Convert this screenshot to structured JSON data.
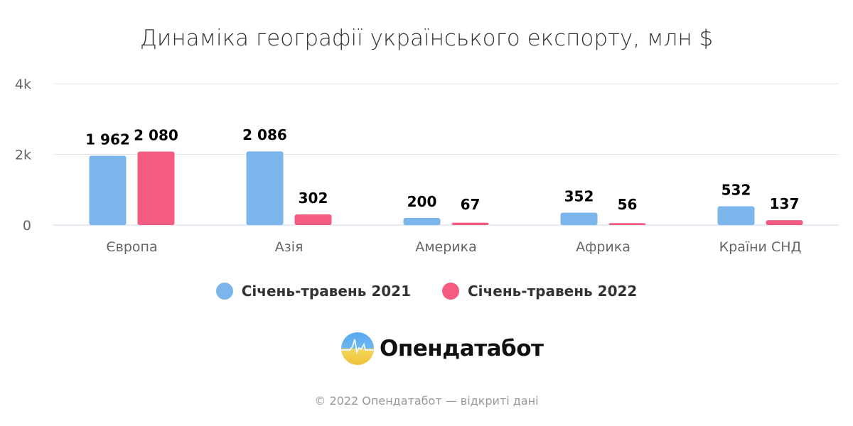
{
  "chart_data": {
    "type": "bar",
    "title": "Динаміка географії українського експорту, млн $",
    "categories": [
      "Європа",
      "Азія",
      "Америка",
      "Африка",
      "Країни СНД"
    ],
    "series": [
      {
        "name": "Січень-травень 2021",
        "color": "#7cb5ec",
        "values": [
          1962,
          2086,
          200,
          352,
          532
        ],
        "labels": [
          "1 962",
          "2 086",
          "200",
          "352",
          "532"
        ]
      },
      {
        "name": "Січень-травень 2022",
        "color": "#f45b81",
        "values": [
          2080,
          302,
          67,
          56,
          137
        ],
        "labels": [
          "2 080",
          "302",
          "67",
          "56",
          "137"
        ]
      }
    ],
    "ylim": [
      0,
      4000
    ],
    "yticks": [
      0,
      2000,
      4000
    ],
    "ytick_labels": [
      "0",
      "2k",
      "4k"
    ],
    "grid": true,
    "legend": "bottom"
  },
  "branding": {
    "logo_text": "Опендатабот"
  },
  "footer": "© 2022 Опендатабот — відкриті дані"
}
